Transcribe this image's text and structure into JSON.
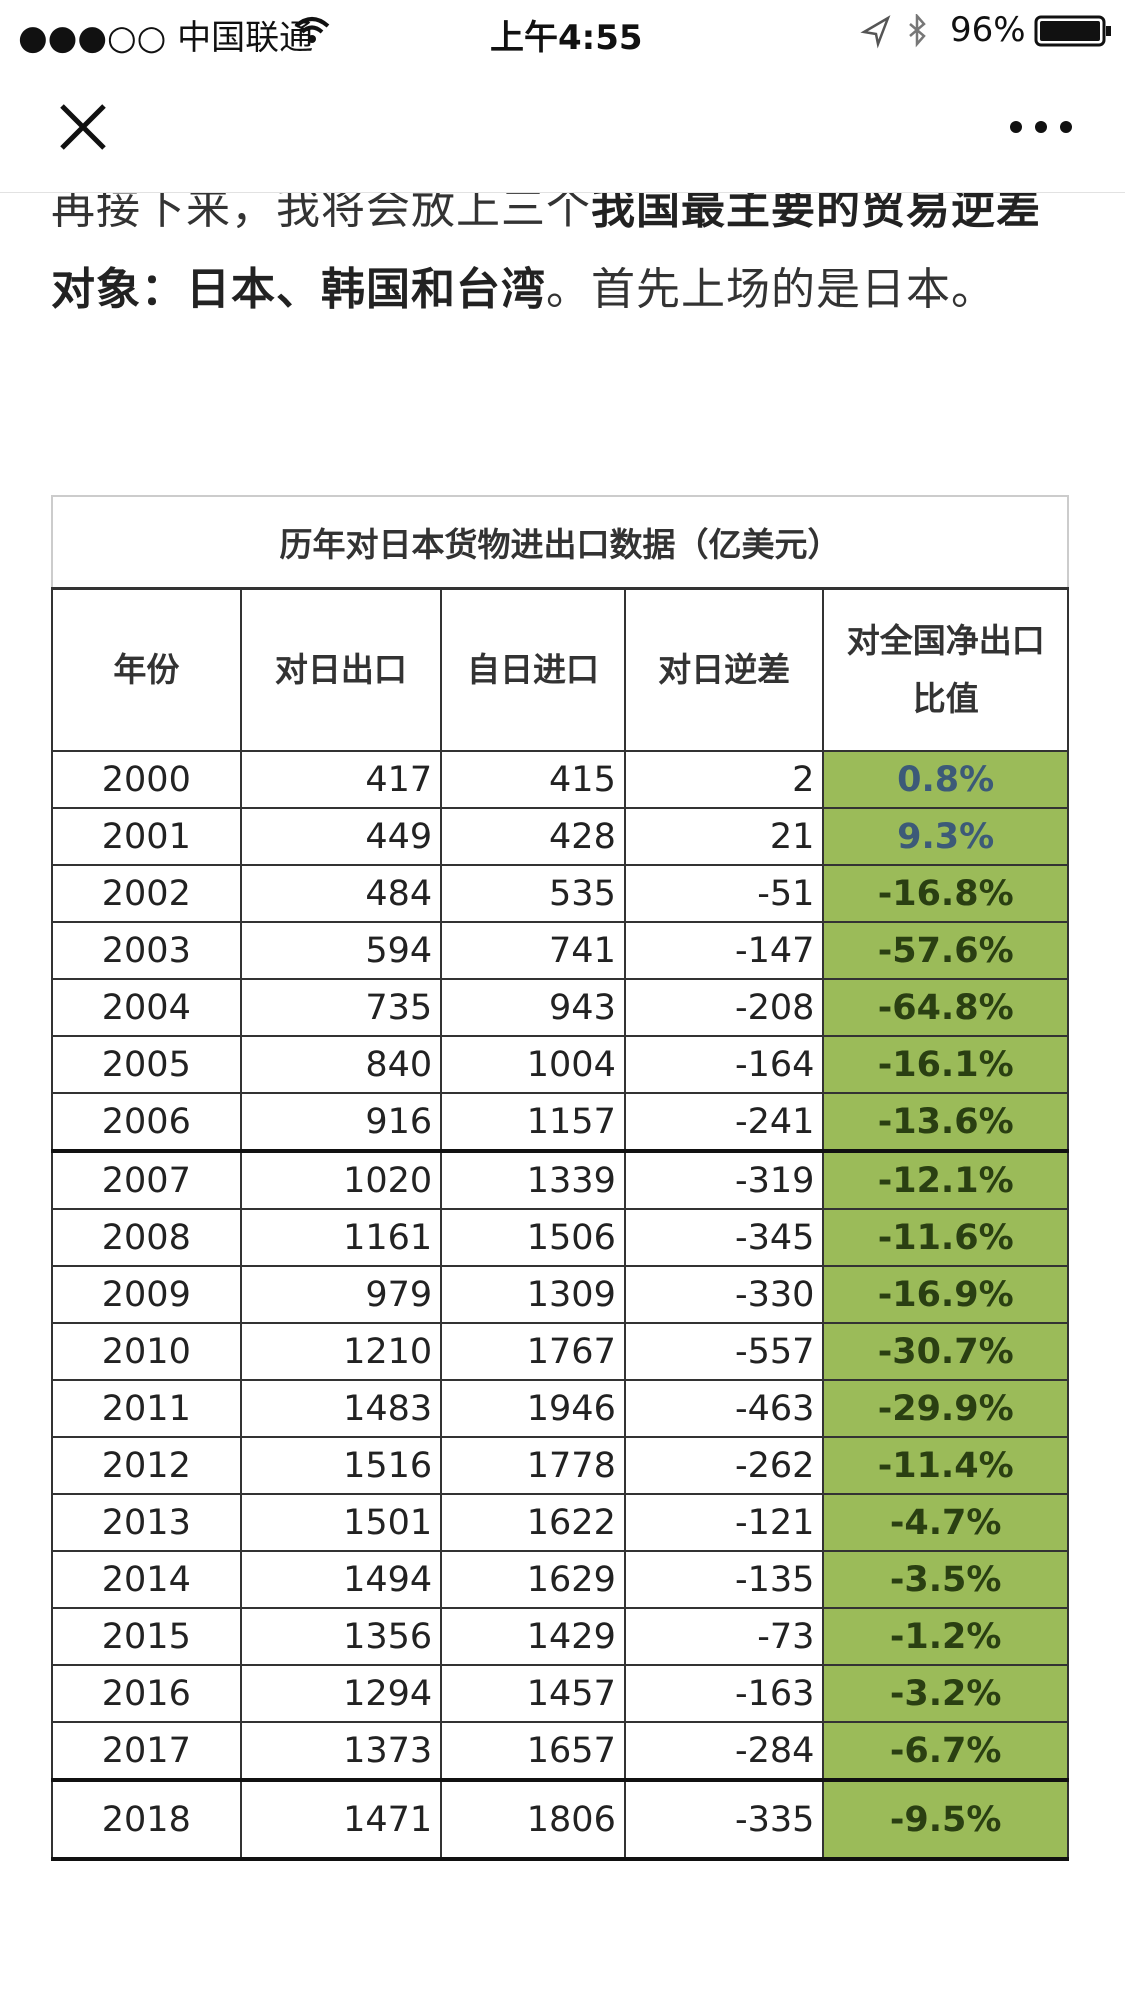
{
  "status_bar": {
    "carrier": "●●●○○ 中国联通",
    "time": "上午4:55",
    "battery": "96%"
  },
  "article": {
    "paragraph": [
      {
        "text": "再接下来，我将会放上三个",
        "bold": false
      },
      {
        "text": "我国最主要的贸易逆差对象：日本、韩国和台湾",
        "bold": true
      },
      {
        "text": "。首先上场的是日本。",
        "bold": false
      }
    ]
  },
  "table": {
    "title": "历年对日本货物进出口数据（亿美元）",
    "headers": [
      "年份",
      "对日出口",
      "自日进口",
      "对日逆差",
      "对全国净出口比值"
    ],
    "rows": [
      [
        2000,
        417,
        415,
        2,
        "0.8%"
      ],
      [
        2001,
        449,
        428,
        21,
        "9.3%"
      ],
      [
        2002,
        484,
        535,
        -51,
        "-16.8%"
      ],
      [
        2003,
        594,
        741,
        -147,
        "-57.6%"
      ],
      [
        2004,
        735,
        943,
        -208,
        "-64.8%"
      ],
      [
        2005,
        840,
        1004,
        -164,
        "-16.1%"
      ],
      [
        2006,
        916,
        1157,
        -241,
        "-13.6%"
      ],
      [
        2007,
        1020,
        1339,
        -319,
        "-12.1%"
      ],
      [
        2008,
        1161,
        1506,
        -345,
        "-11.6%"
      ],
      [
        2009,
        979,
        1309,
        -330,
        "-16.9%"
      ],
      [
        2010,
        1210,
        1767,
        -557,
        "-30.7%"
      ],
      [
        2011,
        1483,
        1946,
        -463,
        "-29.9%"
      ],
      [
        2012,
        1516,
        1778,
        -262,
        "-11.4%"
      ],
      [
        2013,
        1501,
        1622,
        -121,
        "-4.7%"
      ],
      [
        2014,
        1494,
        1629,
        -135,
        "-3.5%"
      ],
      [
        2015,
        1356,
        1429,
        -73,
        "-1.2%"
      ],
      [
        2016,
        1294,
        1457,
        -163,
        "-3.2%"
      ],
      [
        2017,
        1373,
        1657,
        -284,
        "-6.7%"
      ],
      [
        2018,
        1471,
        1806,
        -335,
        "-9.5%"
      ]
    ]
  }
}
